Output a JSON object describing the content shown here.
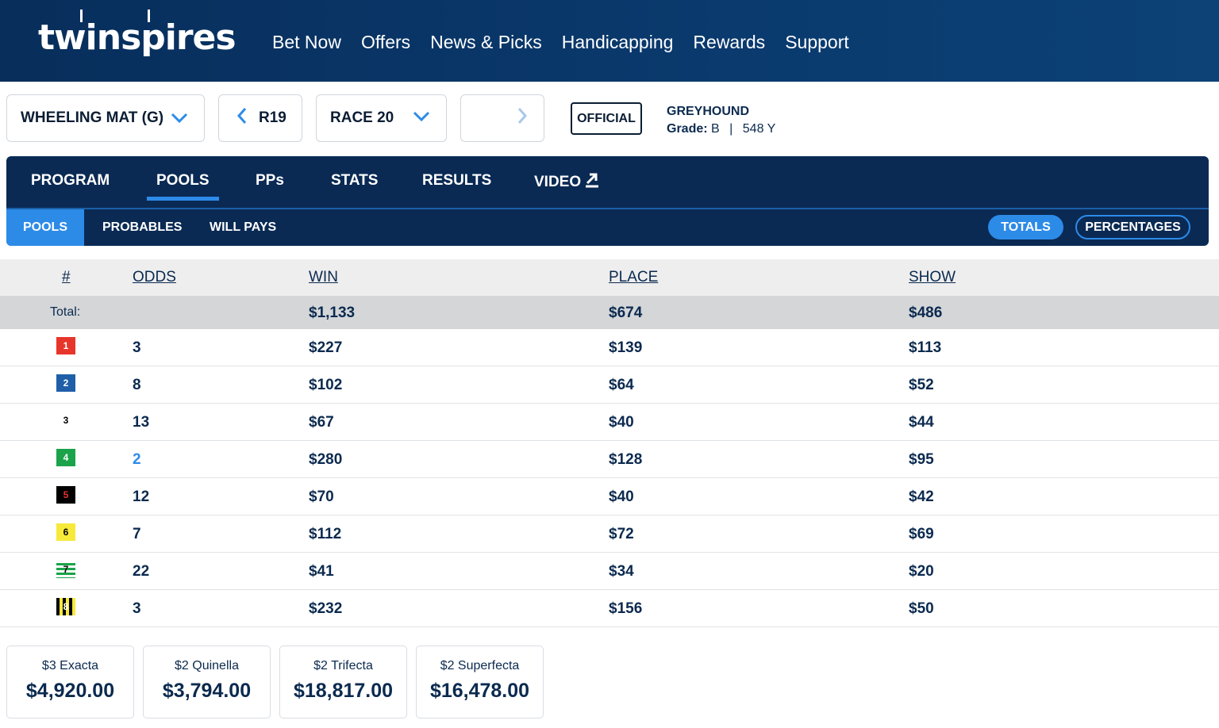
{
  "brand": {
    "name": "twinspires"
  },
  "nav": [
    "Bet Now",
    "Offers",
    "News & Picks",
    "Handicapping",
    "Rewards",
    "Support"
  ],
  "selectors": {
    "track": "WHEELING MAT (G)",
    "prev_race": "R19",
    "race": "RACE 20",
    "next_race": ""
  },
  "status_badge": "OFFICIAL",
  "race_info": {
    "type": "GREYHOUND",
    "grade_label": "Grade:",
    "grade": "B",
    "separator": "|",
    "distance": "548 Y"
  },
  "main_tabs": [
    "PROGRAM",
    "POOLS",
    "PPs",
    "STATS",
    "RESULTS",
    "VIDEO"
  ],
  "active_main_tab": "POOLS",
  "sub_tabs": [
    "POOLS",
    "PROBABLES",
    "WILL PAYS"
  ],
  "active_sub_tab": "POOLS",
  "view_toggle": {
    "totals": "TOTALS",
    "percentages": "PERCENTAGES",
    "active": "TOTALS"
  },
  "table": {
    "headers": {
      "num": "#",
      "odds": "ODDS",
      "win": "WIN",
      "place": "PLACE",
      "show": "SHOW"
    },
    "total": {
      "label": "Total:",
      "win": "$1,133",
      "place": "$674",
      "show": "$486"
    },
    "rows": [
      {
        "num": "1",
        "odds": "3",
        "win": "$227",
        "place": "$139",
        "show": "$113"
      },
      {
        "num": "2",
        "odds": "8",
        "win": "$102",
        "place": "$64",
        "show": "$52"
      },
      {
        "num": "3",
        "odds": "13",
        "win": "$67",
        "place": "$40",
        "show": "$44"
      },
      {
        "num": "4",
        "odds": "2",
        "win": "$280",
        "place": "$128",
        "show": "$95"
      },
      {
        "num": "5",
        "odds": "12",
        "win": "$70",
        "place": "$40",
        "show": "$42"
      },
      {
        "num": "6",
        "odds": "7",
        "win": "$112",
        "place": "$72",
        "show": "$69"
      },
      {
        "num": "7",
        "odds": "22",
        "win": "$41",
        "place": "$34",
        "show": "$20"
      },
      {
        "num": "8",
        "odds": "3",
        "win": "$232",
        "place": "$156",
        "show": "$50"
      }
    ]
  },
  "exotics": [
    {
      "label": "$3 Exacta",
      "value": "$4,920.00"
    },
    {
      "label": "$2 Quinella",
      "value": "$3,794.00"
    },
    {
      "label": "$2 Trifecta",
      "value": "$18,817.00"
    },
    {
      "label": "$2 Superfecta",
      "value": "$16,478.00"
    }
  ],
  "colors": {
    "header_bg": "#0a3a6e",
    "panel_bg": "#0a2a54",
    "accent": "#2d8be8",
    "favorite_odds": "#2d8be8"
  }
}
